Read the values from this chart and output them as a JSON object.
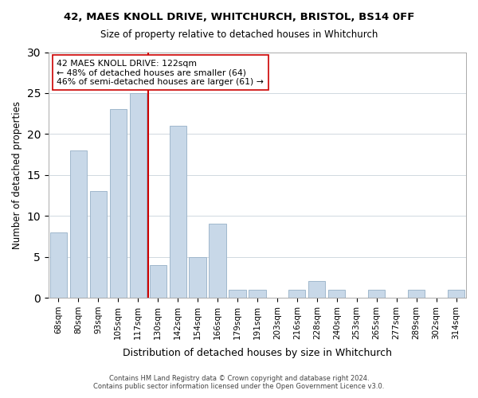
{
  "title1": "42, MAES KNOLL DRIVE, WHITCHURCH, BRISTOL, BS14 0FF",
  "title2": "Size of property relative to detached houses in Whitchurch",
  "xlabel": "Distribution of detached houses by size in Whitchurch",
  "ylabel": "Number of detached properties",
  "bin_labels": [
    "68sqm",
    "80sqm",
    "93sqm",
    "105sqm",
    "117sqm",
    "130sqm",
    "142sqm",
    "154sqm",
    "166sqm",
    "179sqm",
    "191sqm",
    "203sqm",
    "216sqm",
    "228sqm",
    "240sqm",
    "253sqm",
    "265sqm",
    "277sqm",
    "289sqm",
    "302sqm",
    "314sqm"
  ],
  "bar_heights": [
    8,
    18,
    13,
    23,
    25,
    4,
    21,
    5,
    9,
    1,
    1,
    0,
    1,
    2,
    1,
    0,
    1,
    0,
    1,
    0,
    1
  ],
  "bar_color": "#c8d8e8",
  "bar_edge_color": "#a0b8cc",
  "reference_line_x": 4,
  "reference_line_color": "#cc0000",
  "ylim": [
    0,
    30
  ],
  "yticks": [
    0,
    5,
    10,
    15,
    20,
    25,
    30
  ],
  "annotation_text": "42 MAES KNOLL DRIVE: 122sqm\n← 48% of detached houses are smaller (64)\n46% of semi-detached houses are larger (61) →",
  "annotation_box_color": "white",
  "annotation_box_edge": "#cc0000",
  "footnote1": "Contains HM Land Registry data © Crown copyright and database right 2024.",
  "footnote2": "Contains public sector information licensed under the Open Government Licence v3.0."
}
